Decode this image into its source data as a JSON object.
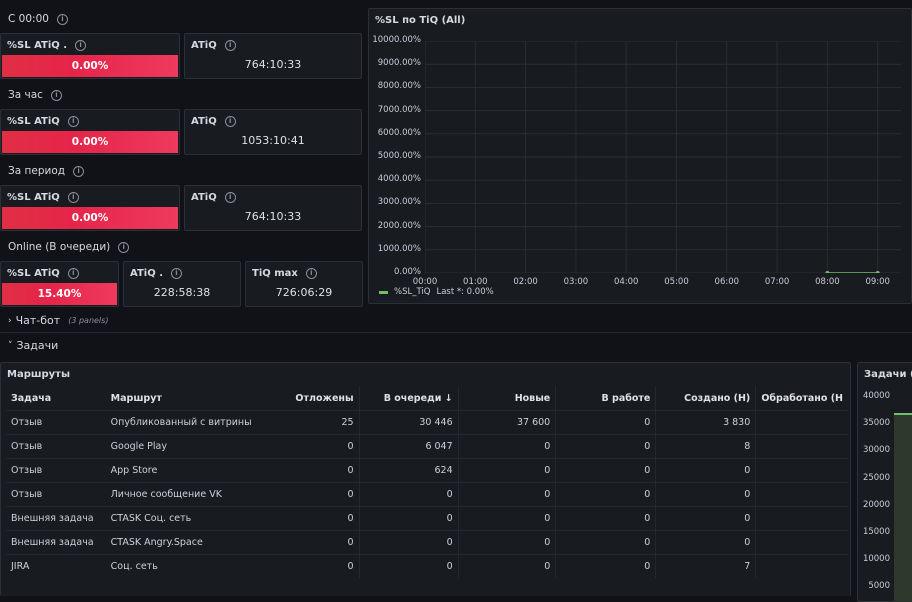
{
  "rows": {
    "since": {
      "title": "С 00:00",
      "sl_title": "%SL ATiQ .",
      "sl_value": "0.00%",
      "atiq_title": "ATiQ",
      "atiq_value": "764:10:33"
    },
    "hour": {
      "title": "За час",
      "sl_title": "%SL ATiQ",
      "sl_value": "0.00%",
      "atiq_title": "ATiQ",
      "atiq_value": "1053:10:41"
    },
    "period": {
      "title": "За период",
      "sl_title": "%SL ATiQ",
      "sl_value": "0.00%",
      "atiq_title": "ATiQ",
      "atiq_value": "764:10:33"
    },
    "online": {
      "title": "Online (В очереди)",
      "sl_title": "%SL ATiQ",
      "sl_value": "15.40%",
      "atiq_title": "ATiQ .",
      "atiq_value": "228:58:38",
      "tiq_title": "TiQ max",
      "tiq_value": "726:06:29"
    }
  },
  "sl_graph": {
    "title": "%SL по TiQ (All)",
    "legend_name": "%SL_TiQ",
    "legend_last": "Last *: 0.00%"
  },
  "chart_data": {
    "type": "line",
    "title": "%SL по TiQ (All)",
    "xlabel": "",
    "ylabel": "",
    "x_ticks": [
      "00:00",
      "01:00",
      "02:00",
      "03:00",
      "04:00",
      "05:00",
      "06:00",
      "07:00",
      "08:00",
      "09:00"
    ],
    "y_ticks": [
      "10000.00%",
      "9000.00%",
      "8000.00%",
      "7000.00%",
      "6000.00%",
      "5000.00%",
      "4000.00%",
      "3000.00%",
      "2000.00%",
      "1000.00%",
      "0.00%"
    ],
    "ylim": [
      0,
      10000
    ],
    "series": [
      {
        "name": "%SL_TiQ",
        "color": "#73bf69",
        "x": [
          "08:00",
          "09:00"
        ],
        "values": [
          0,
          0
        ]
      }
    ],
    "grid": true,
    "legend": "bottom-left"
  },
  "chatbot_row": {
    "title": "Чат-бот",
    "note": "(3 panels)"
  },
  "tasks_row": {
    "title": "Задачи"
  },
  "routes": {
    "title": "Маршруты",
    "columns": [
      "Задача",
      "Маршрут",
      "Отложены",
      "В очереди",
      "Новые",
      "В работе",
      "Создано (Н)",
      "Обработано (Н"
    ],
    "sort_icon": "↓",
    "rows": [
      [
        "Отзыв",
        "Опубликованный с витрины",
        "25",
        "30 446",
        "37 600",
        "0",
        "3 830",
        ""
      ],
      [
        "Отзыв",
        "Google Play",
        "0",
        "6 047",
        "0",
        "0",
        "8",
        ""
      ],
      [
        "Отзыв",
        "App Store",
        "0",
        "624",
        "0",
        "0",
        "0",
        ""
      ],
      [
        "Отзыв",
        "Личное сообщение VK",
        "0",
        "0",
        "0",
        "0",
        "0",
        ""
      ],
      [
        "Внешняя задача",
        "CTASK Соц. сеть",
        "0",
        "0",
        "0",
        "0",
        "0",
        ""
      ],
      [
        "Внешняя задача",
        "CTASK Angry.Space",
        "0",
        "0",
        "0",
        "0",
        "0",
        ""
      ],
      [
        "JIRA",
        "Соц. сеть",
        "0",
        "0",
        "0",
        "0",
        "7",
        ""
      ]
    ]
  },
  "tasks_graph": {
    "title": "Задачи (All",
    "y_ticks": [
      "40000",
      "35000",
      "30000",
      "25000",
      "20000",
      "15000",
      "10000",
      "5000"
    ]
  }
}
